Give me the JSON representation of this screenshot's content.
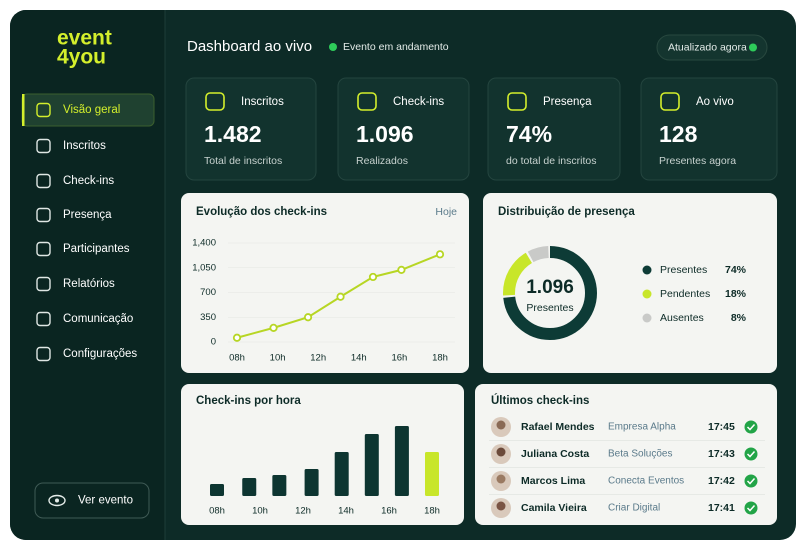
{
  "sidebar": {
    "brand": [
      "event",
      "4you"
    ],
    "nav": [
      "Visão geral",
      "Inscritos",
      "Check-ins",
      "Presença",
      "Participantes",
      "Relatórios",
      "Comunicação",
      "Configurações"
    ],
    "active": 0,
    "button": "Ver evento"
  },
  "header": {
    "title": "Dashboard ao vivo",
    "status": "Evento em andamento",
    "updated": "Atualizado agora"
  },
  "kpis": [
    {
      "label": "Inscritos",
      "value": "1.482",
      "caption": "Total de inscritos"
    },
    {
      "label": "Check-ins",
      "value": "1.096",
      "caption": "Realizados"
    },
    {
      "label": "Presença",
      "value": "74%",
      "caption": "do total de inscritos"
    },
    {
      "label": "Ao vivo",
      "value": "128",
      "caption": "Presentes agora"
    }
  ],
  "line_chart": {
    "type": "line",
    "title": "Evolução dos check-ins",
    "filter": "Hoje",
    "x": [
      8,
      9.8,
      11.5,
      13.1,
      14.7,
      16.1,
      18
    ],
    "values": [
      60,
      200,
      350,
      640,
      920,
      1020,
      1240
    ],
    "color": "#b7d624",
    "xlim": [
      8,
      18
    ],
    "xticks": [
      {
        "value": 8,
        "label": "08h"
      },
      {
        "value": 10,
        "label": "10h"
      },
      {
        "value": 12,
        "label": "12h"
      },
      {
        "value": 14,
        "label": "14h"
      },
      {
        "value": 16,
        "label": "16h"
      },
      {
        "value": 18,
        "label": "18h"
      }
    ],
    "ylim": [
      0,
      1400
    ],
    "yticks": [
      0,
      350,
      700,
      {
        "value": 1050,
        "label": "1,050"
      },
      {
        "value": 1400,
        "label": "1,400"
      }
    ]
  },
  "bar_chart": {
    "type": "bar",
    "title": "Check-ins por hora",
    "x": [
      8,
      9.5,
      10.9,
      12.4,
      13.8,
      15.2,
      16.6,
      18
    ],
    "values": [
      12,
      18,
      21,
      27,
      44,
      62,
      70,
      44
    ],
    "color": "#0d3531",
    "highlight": 7,
    "highlight_color": "#c8e62a",
    "xlim": [
      8,
      18
    ],
    "xticks": [
      {
        "value": 8,
        "label": "08h"
      },
      {
        "value": 10,
        "label": "10h"
      },
      {
        "value": 12,
        "label": "12h"
      },
      {
        "value": 14,
        "label": "14h"
      },
      {
        "value": 16,
        "label": "16h"
      },
      {
        "value": 18,
        "label": "18h"
      }
    ],
    "ylim": [
      0,
      80
    ]
  },
  "donut_chart": {
    "type": "pie",
    "title": "Distribuição de presença",
    "center_value": "1.096",
    "center_label": "Presentes",
    "categories": [
      "Presentes",
      "Pendentes",
      "Ausentes"
    ],
    "values": [
      74,
      18,
      8
    ],
    "value_labels": [
      "74%",
      "18%",
      "8%"
    ],
    "colors": [
      "#0d3b36",
      "#c8e62a",
      "#c9cac8"
    ]
  },
  "recent": {
    "title": "Últimos check-ins",
    "rows": [
      {
        "name": "Rafael Mendes",
        "company": "Empresa Alpha",
        "time": "17:45"
      },
      {
        "name": "Juliana Costa",
        "company": "Beta Soluções",
        "time": "17:43"
      },
      {
        "name": "Marcos Lima",
        "company": "Conecta Eventos",
        "time": "17:42"
      },
      {
        "name": "Camila Vieira",
        "company": "Criar Digital",
        "time": "17:41"
      }
    ]
  }
}
